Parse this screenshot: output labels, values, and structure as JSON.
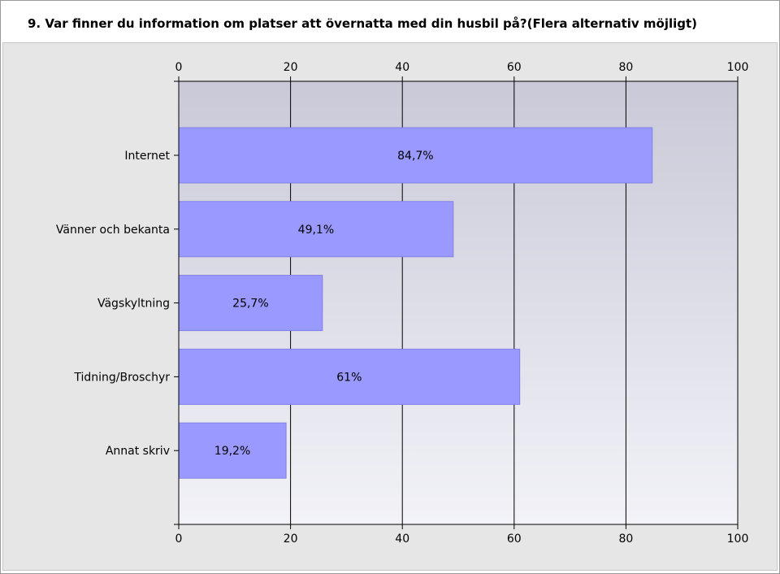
{
  "title": "9. Var finner du information om platser att övernatta med din husbil på?(Flera alternativ möjligt)",
  "chart_data": {
    "type": "bar",
    "orientation": "horizontal",
    "title": "9. Var finner du information om platser att övernatta med din husbil på?(Flera alternativ möjligt)",
    "categories": [
      "Internet",
      "Vänner och bekanta",
      "Vägskyltning",
      "Tidning/Broschyr",
      "Annat skriv"
    ],
    "values": [
      84.7,
      49.1,
      25.7,
      61,
      19.2
    ],
    "value_labels": [
      "84,7%",
      "49,1%",
      "25,7%",
      "61%",
      "19,2%"
    ],
    "xlim": [
      0,
      100
    ],
    "xticks": [
      0,
      20,
      40,
      60,
      80,
      100
    ],
    "tick_labels": [
      "0",
      "20",
      "40",
      "60",
      "80",
      "100"
    ],
    "grid": true,
    "legend": "none",
    "colors": {
      "bar": "#9999ff",
      "bar_edge": "#8080e6",
      "plot_bg_top": "#c9c9d8",
      "plot_bg_bottom": "#f2f2f8",
      "grid": "#000000",
      "outer_bg": "#e6e6e6"
    }
  }
}
